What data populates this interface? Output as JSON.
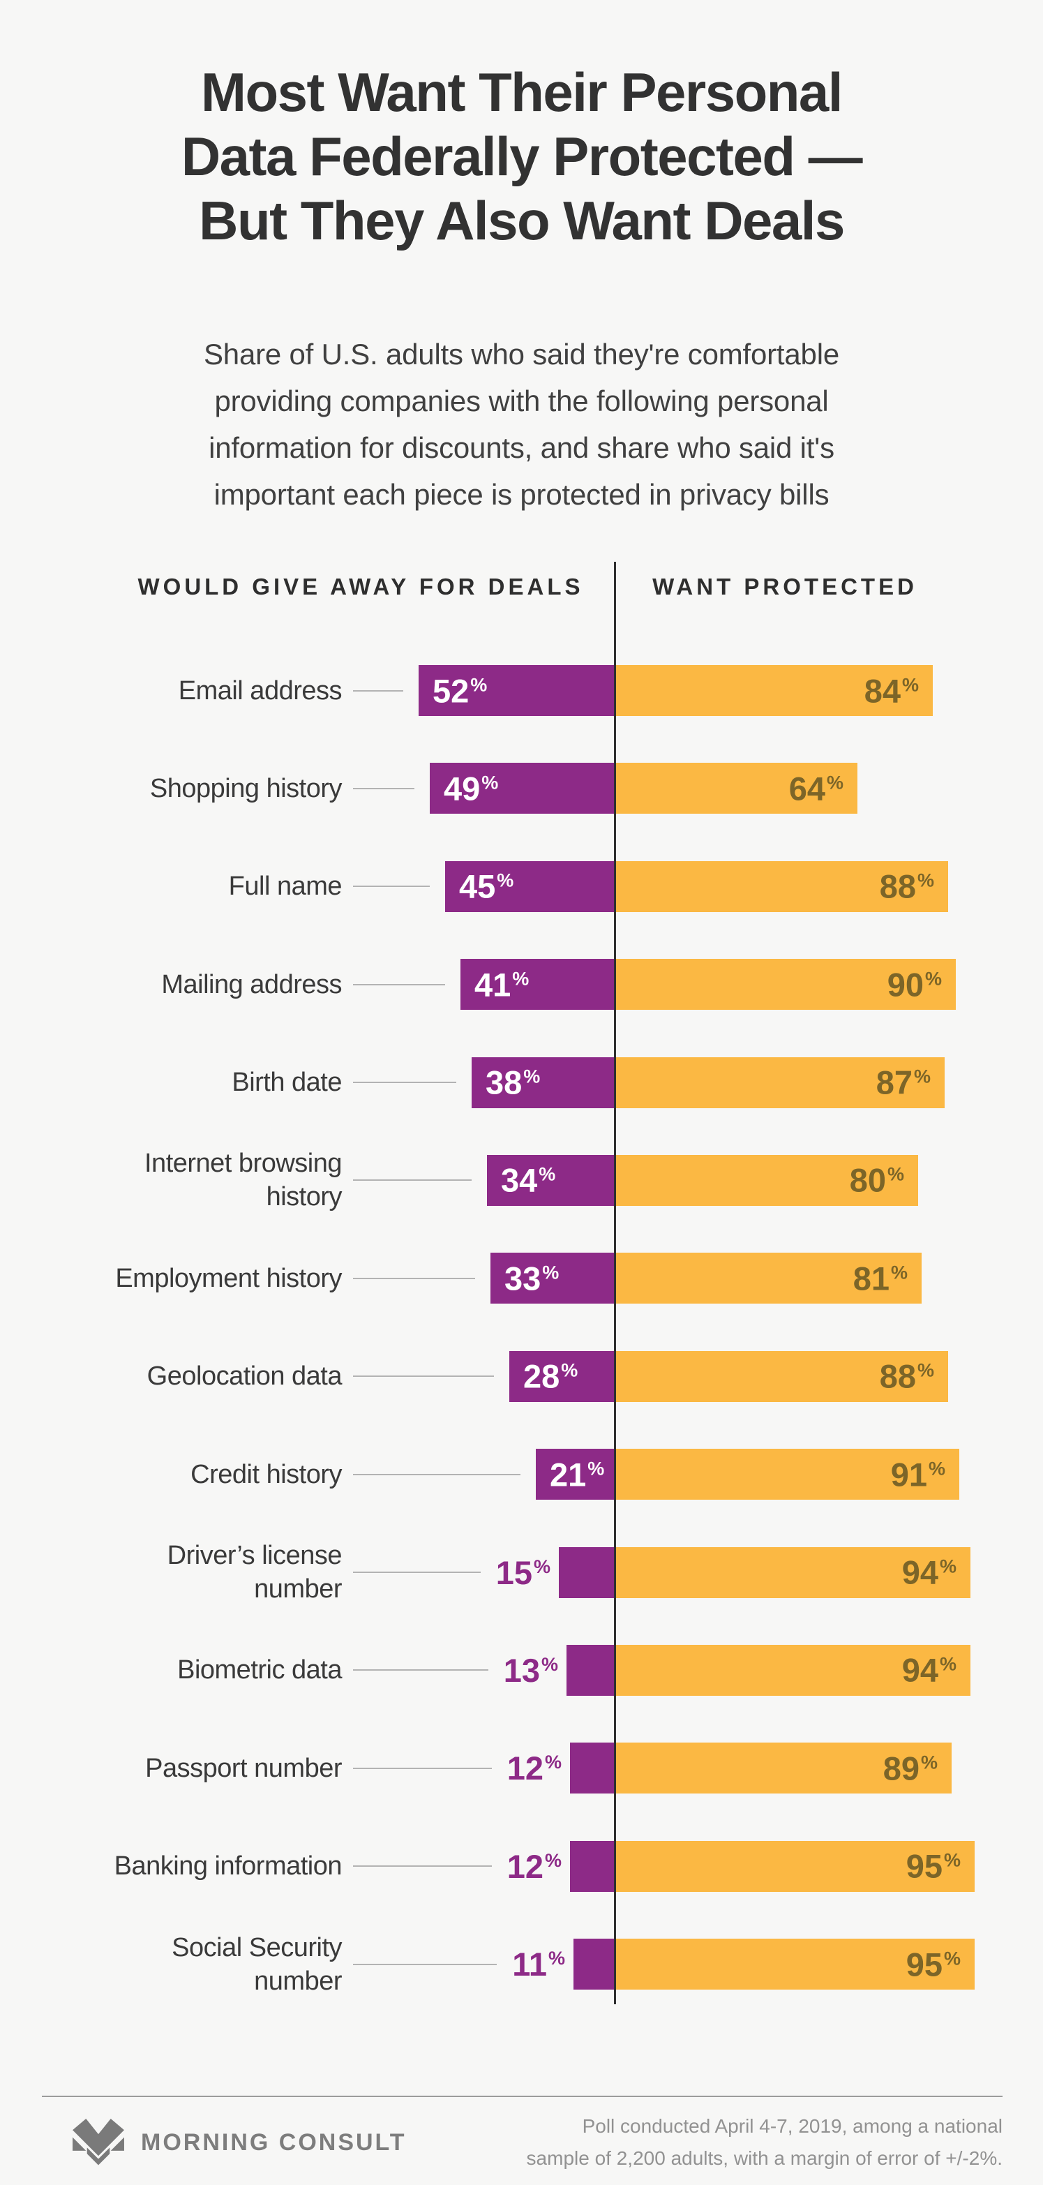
{
  "page": {
    "background": "#f7f7f6"
  },
  "title_lines": [
    "Most Want Their Personal",
    "Data Federally Protected —",
    "But They Also Want Deals"
  ],
  "subtitle_lines": [
    "Share of U.S. adults who said they're comfortable",
    "providing companies with the following personal",
    "information for discounts, and share who said it's",
    "important each piece is protected in privacy bills"
  ],
  "columns": {
    "left_header": "WOULD GIVE AWAY FOR DEALS",
    "right_header": "WANT PROTECTED"
  },
  "chart_data": {
    "type": "bar",
    "variant": "diverging-horizontal-bars",
    "title": "Most Want Their Personal Data Federally Protected — But They Also Want Deals",
    "categories": [
      "Email address",
      "Shopping history",
      "Full name",
      "Mailing address",
      "Birth date",
      "Internet browsing history",
      "Employment history",
      "Geolocation data",
      "Credit history",
      "Driver’s license number",
      "Biometric data",
      "Passport number",
      "Banking information",
      "Social Security number"
    ],
    "category_label_lines": [
      [
        "Email address"
      ],
      [
        "Shopping history"
      ],
      [
        "Full name"
      ],
      [
        "Mailing address"
      ],
      [
        "Birth date"
      ],
      [
        "Internet browsing",
        "history"
      ],
      [
        "Employment history"
      ],
      [
        "Geolocation data"
      ],
      [
        "Credit history"
      ],
      [
        "Driver’s license",
        "number"
      ],
      [
        "Biometric data"
      ],
      [
        "Passport number"
      ],
      [
        "Banking information"
      ],
      [
        "Social Security",
        "number"
      ]
    ],
    "series": [
      {
        "name": "Would give away for deals",
        "color": "#8d2a87",
        "values": [
          52,
          49,
          45,
          41,
          38,
          34,
          33,
          28,
          21,
          15,
          13,
          12,
          12,
          11
        ]
      },
      {
        "name": "Want protected",
        "color": "#fbb843",
        "values": [
          84,
          64,
          88,
          90,
          87,
          80,
          81,
          88,
          91,
          94,
          94,
          89,
          95,
          95
        ]
      }
    ],
    "value_suffix": "%",
    "xlim": [
      0,
      100
    ],
    "gridlines": false,
    "legend_position": "column-headers",
    "divider_color": "#2f2f2f",
    "leader_line_color": "#b3b3b3",
    "value_label_colors": {
      "left_inside": "#ffffff",
      "left_outside": "#8d2a87",
      "right_inside": "#7c6528"
    },
    "outside_label_threshold": 20
  },
  "footer": {
    "brand": "MORNING CONSULT",
    "note_lines": [
      "Poll conducted April 4-7, 2019, among a national",
      "sample of 2,200 adults, with a margin of error of +/-2%."
    ]
  }
}
